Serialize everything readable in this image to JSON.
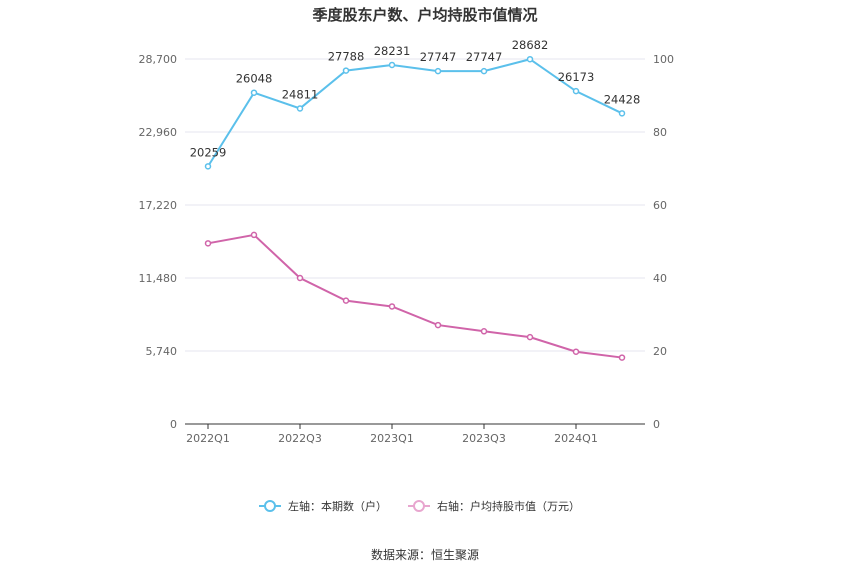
{
  "chart_data": {
    "type": "line",
    "title": "季度股东户数、户均持股市值情况",
    "categories": [
      "2022Q1",
      "2022Q2",
      "2022Q3",
      "2022Q4",
      "2023Q1",
      "2023Q2",
      "2023Q3",
      "2023Q4",
      "2024Q1",
      "2024Q2"
    ],
    "x_tick_labels": [
      "2022Q1",
      "",
      "2022Q3",
      "",
      "2023Q1",
      "",
      "2023Q3",
      "",
      "2024Q1",
      ""
    ],
    "left_axis": {
      "ticks": [
        "0",
        "5,740",
        "11,480",
        "17,220",
        "22,960",
        "28,700"
      ],
      "range": [
        0,
        28700
      ]
    },
    "right_axis": {
      "ticks": [
        "0",
        "20",
        "40",
        "60",
        "80",
        "100"
      ],
      "range": [
        0,
        100
      ]
    },
    "series": [
      {
        "name": "左轴：本期数（户）",
        "axis": "left",
        "color": "#5bc0eb",
        "values": [
          20259,
          26048,
          24811,
          27788,
          28231,
          27747,
          27747,
          28682,
          26173,
          24428
        ],
        "labels": [
          "20259",
          "26048",
          "24811",
          "27788",
          "28231",
          "27747",
          "27747",
          "28682",
          "26173",
          "24428"
        ]
      },
      {
        "name": "右轴：户均持股市值（万元）",
        "axis": "right",
        "color": "#d064a9",
        "values": [
          49.5,
          51.8,
          40.0,
          33.8,
          32.2,
          27.1,
          25.4,
          23.8,
          19.8,
          18.2
        ]
      }
    ],
    "source": "数据来源：恒生聚源",
    "grid": true,
    "legend_position": "bottom"
  }
}
